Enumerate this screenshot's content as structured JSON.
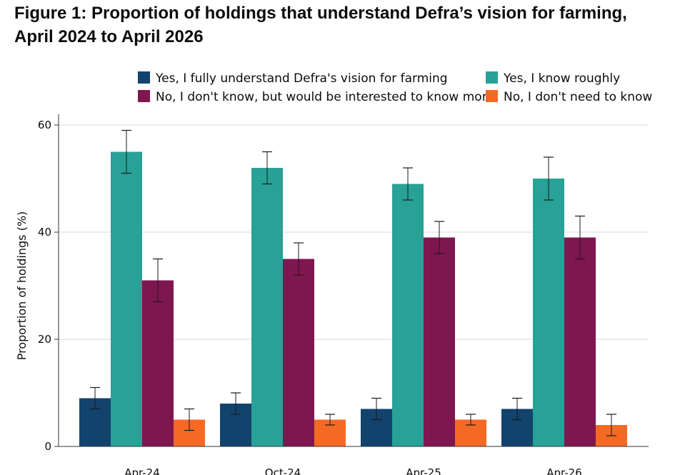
{
  "figure": {
    "title": "Figure 1: Proportion of holdings that understand Defra’s vision for farming, April 2024 to April 2026"
  },
  "chart_data": {
    "type": "bar",
    "xlabel": "",
    "ylabel": "Proportion of holdings (%)",
    "ylim": [
      0,
      60
    ],
    "yticks": [
      0,
      20,
      40,
      60
    ],
    "grid": true,
    "legend_position": "top",
    "categories": [
      "Apr-24",
      "Oct-24",
      "Apr-25",
      "Apr-26"
    ],
    "series": [
      {
        "name": "Yes, I fully understand Defra's vision for farming",
        "color": "#12436d",
        "values": [
          9,
          8,
          7,
          7
        ],
        "error_low": [
          7,
          6,
          5,
          5
        ],
        "error_high": [
          11,
          10,
          9,
          9
        ]
      },
      {
        "name": "Yes, I know roughly",
        "color": "#28a197",
        "values": [
          55,
          52,
          49,
          50
        ],
        "error_low": [
          51,
          49,
          46,
          46
        ],
        "error_high": [
          59,
          55,
          52,
          54
        ]
      },
      {
        "name": "No, I don't know, but would be interested to know more",
        "color": "#801650",
        "values": [
          31,
          35,
          39,
          39
        ],
        "error_low": [
          27,
          32,
          36,
          35
        ],
        "error_high": [
          35,
          38,
          42,
          43
        ]
      },
      {
        "name": "No, I don't need to know",
        "color": "#f46a25",
        "values": [
          5,
          5,
          5,
          4
        ],
        "error_low": [
          3,
          4,
          4,
          2
        ],
        "error_high": [
          7,
          6,
          6,
          6
        ]
      }
    ]
  }
}
